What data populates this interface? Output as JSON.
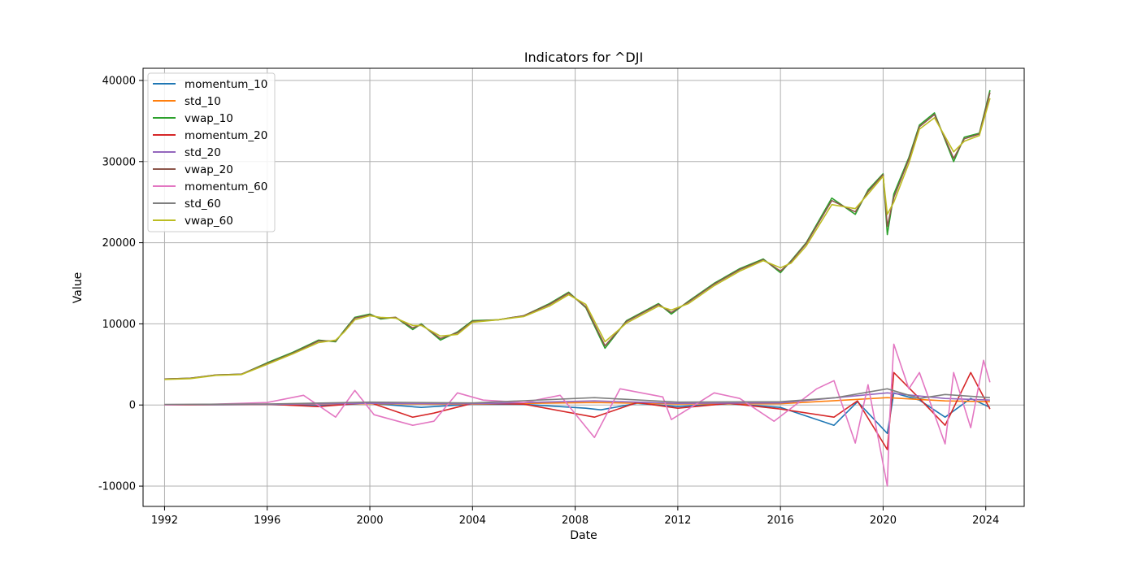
{
  "chart_data": {
    "type": "line",
    "title": "Indicators for ^DJI",
    "xlabel": "Date",
    "ylabel": "Value",
    "xlim": [
      "1991-03-01",
      "2025-07-01"
    ],
    "ylim": [
      -12500,
      41500
    ],
    "x_ticks": [
      "1992",
      "1996",
      "2000",
      "2004",
      "2008",
      "2012",
      "2016",
      "2020",
      "2024"
    ],
    "y_ticks": [
      -10000,
      0,
      10000,
      20000,
      30000,
      40000
    ],
    "grid": true,
    "legend_position": "top-left",
    "series": [
      {
        "name": "momentum_10",
        "color": "#1f77b4",
        "x": [
          "1992-01",
          "1994-01",
          "1996-01",
          "1998-01",
          "2000-01",
          "2002-01",
          "2004-01",
          "2006-01",
          "2008-06",
          "2009-01",
          "2010-06",
          "2012-01",
          "2014-01",
          "2016-01",
          "2018-02",
          "2019-01",
          "2020-03",
          "2020-06",
          "2021-06",
          "2022-06",
          "2023-06",
          "2024-03"
        ],
        "values": [
          0,
          30,
          60,
          -100,
          200,
          -300,
          100,
          80,
          -400,
          -600,
          200,
          -200,
          150,
          -300,
          -2500,
          400,
          -3500,
          1500,
          600,
          -1500,
          800,
          -300
        ]
      },
      {
        "name": "std_10",
        "color": "#ff7f0e",
        "x": [
          "1992-01",
          "1996-01",
          "2000-01",
          "2004-01",
          "2008-10",
          "2012-01",
          "2016-01",
          "2020-03",
          "2022-06",
          "2024-03"
        ],
        "values": [
          30,
          60,
          150,
          100,
          300,
          120,
          150,
          900,
          500,
          400
        ]
      },
      {
        "name": "vwap_10",
        "color": "#2ca02c",
        "x": [
          "1992-01",
          "1993-01",
          "1994-01",
          "1995-01",
          "1996-01",
          "1997-01",
          "1998-01",
          "1998-09",
          "1999-01",
          "1999-06",
          "2000-01",
          "2000-06",
          "2001-01",
          "2001-09",
          "2002-01",
          "2002-10",
          "2003-06",
          "2004-01",
          "2005-01",
          "2006-01",
          "2007-01",
          "2007-10",
          "2008-06",
          "2009-03",
          "2010-01",
          "2011-04",
          "2011-10",
          "2012-06",
          "2013-06",
          "2014-06",
          "2015-05",
          "2016-01",
          "2016-06",
          "2017-01",
          "2018-01",
          "2018-12",
          "2019-06",
          "2020-01",
          "2020-03",
          "2020-06",
          "2021-01",
          "2021-06",
          "2022-01",
          "2022-10",
          "2023-03",
          "2023-10",
          "2024-03"
        ],
        "values": [
          3200,
          3300,
          3700,
          3800,
          5200,
          6500,
          8000,
          7800,
          9200,
          10800,
          11200,
          10600,
          10800,
          9300,
          10000,
          8000,
          9000,
          10400,
          10500,
          11000,
          12500,
          13900,
          12000,
          7000,
          10400,
          12500,
          11200,
          12800,
          15000,
          16800,
          18000,
          16300,
          17800,
          20000,
          25500,
          23500,
          26500,
          28500,
          21000,
          26000,
          30500,
          34500,
          36000,
          30000,
          33000,
          33500,
          38800
        ]
      },
      {
        "name": "momentum_20",
        "color": "#d62728",
        "x": [
          "1992-01",
          "1994-01",
          "1996-01",
          "1998-01",
          "2000-01",
          "2001-09",
          "2002-07",
          "2004-01",
          "2006-01",
          "2008-10",
          "2010-06",
          "2012-01",
          "2014-01",
          "2016-01",
          "2018-02",
          "2019-01",
          "2020-03",
          "2020-06",
          "2021-06",
          "2022-06",
          "2023-06",
          "2024-03"
        ],
        "values": [
          0,
          50,
          100,
          -200,
          300,
          -1500,
          -1000,
          200,
          100,
          -1500,
          300,
          -400,
          200,
          -500,
          -1500,
          500,
          -5500,
          4000,
          800,
          -2500,
          4000,
          -500
        ]
      },
      {
        "name": "std_20",
        "color": "#9467bd",
        "x": [
          "1992-01",
          "1996-01",
          "2000-01",
          "2004-01",
          "2008-10",
          "2012-01",
          "2016-01",
          "2020-03",
          "2022-06",
          "2024-03"
        ],
        "values": [
          40,
          80,
          200,
          150,
          500,
          200,
          250,
          1500,
          800,
          600
        ]
      },
      {
        "name": "vwap_20",
        "color": "#8c564b",
        "x": [
          "1992-01",
          "1993-01",
          "1994-01",
          "1995-01",
          "1996-01",
          "1997-01",
          "1998-01",
          "1998-09",
          "1999-01",
          "1999-06",
          "2000-01",
          "2000-06",
          "2001-01",
          "2001-09",
          "2002-01",
          "2002-10",
          "2003-06",
          "2004-01",
          "2005-01",
          "2006-01",
          "2007-01",
          "2007-10",
          "2008-06",
          "2009-03",
          "2010-01",
          "2011-04",
          "2011-10",
          "2012-06",
          "2013-06",
          "2014-06",
          "2015-05",
          "2016-01",
          "2016-06",
          "2017-01",
          "2018-01",
          "2018-12",
          "2019-06",
          "2020-01",
          "2020-03",
          "2020-06",
          "2021-01",
          "2021-06",
          "2022-01",
          "2022-10",
          "2023-03",
          "2023-10",
          "2024-03"
        ],
        "values": [
          3200,
          3300,
          3700,
          3800,
          5100,
          6400,
          7900,
          7900,
          9100,
          10700,
          11100,
          10700,
          10800,
          9500,
          9900,
          8200,
          8900,
          10300,
          10500,
          11000,
          12400,
          13800,
          12100,
          7300,
          10300,
          12400,
          11400,
          12700,
          14900,
          16700,
          17900,
          16500,
          17700,
          19900,
          25200,
          23800,
          26300,
          28400,
          22000,
          25600,
          30300,
          34300,
          35800,
          30400,
          32800,
          33400,
          38500
        ]
      },
      {
        "name": "momentum_60",
        "color": "#e377c2",
        "x": [
          "1992-01",
          "1994-01",
          "1996-01",
          "1997-06",
          "1998-09",
          "1999-06",
          "2000-03",
          "2001-09",
          "2002-07",
          "2003-06",
          "2004-06",
          "2006-01",
          "2007-06",
          "2008-10",
          "2009-10",
          "2011-06",
          "2011-10",
          "2013-06",
          "2014-06",
          "2015-10",
          "2017-06",
          "2018-02",
          "2018-12",
          "2019-06",
          "2020-03",
          "2020-04",
          "2020-06",
          "2021-01",
          "2021-06",
          "2022-06",
          "2022-10",
          "2023-06",
          "2023-12",
          "2024-03"
        ],
        "values": [
          0,
          100,
          300,
          1200,
          -1500,
          1800,
          -1200,
          -2500,
          -2000,
          1500,
          600,
          300,
          1200,
          -4000,
          2000,
          1000,
          -1800,
          1500,
          800,
          -2000,
          2000,
          3000,
          -4700,
          2500,
          -10000,
          -2000,
          7500,
          2000,
          4000,
          -4800,
          4000,
          -2800,
          5500,
          2800
        ]
      },
      {
        "name": "std_60",
        "color": "#7f7f7f",
        "x": [
          "1992-01",
          "1996-01",
          "2000-01",
          "2004-01",
          "2008-10",
          "2012-01",
          "2016-01",
          "2018-03",
          "2020-03",
          "2021-06",
          "2022-06",
          "2024-03"
        ],
        "values": [
          60,
          120,
          350,
          250,
          900,
          350,
          400,
          900,
          2000,
          800,
          1300,
          900
        ]
      },
      {
        "name": "vwap_60",
        "color": "#bcbd22",
        "x": [
          "1992-01",
          "1993-01",
          "1994-01",
          "1995-01",
          "1996-01",
          "1997-01",
          "1998-01",
          "1998-09",
          "1999-01",
          "1999-06",
          "2000-01",
          "2000-06",
          "2001-01",
          "2001-09",
          "2002-01",
          "2002-10",
          "2003-06",
          "2004-01",
          "2005-01",
          "2006-01",
          "2007-01",
          "2007-10",
          "2008-06",
          "2009-03",
          "2010-01",
          "2011-04",
          "2011-10",
          "2012-06",
          "2013-06",
          "2014-06",
          "2015-05",
          "2016-01",
          "2016-06",
          "2017-01",
          "2018-01",
          "2018-12",
          "2019-06",
          "2020-01",
          "2020-03",
          "2020-06",
          "2021-01",
          "2021-06",
          "2022-01",
          "2022-10",
          "2023-03",
          "2023-10",
          "2024-03"
        ],
        "values": [
          3150,
          3250,
          3650,
          3750,
          5000,
          6300,
          7700,
          8000,
          9000,
          10500,
          11000,
          10800,
          10700,
          9800,
          9800,
          8500,
          8700,
          10200,
          10500,
          10900,
          12200,
          13600,
          12400,
          7800,
          10100,
          12200,
          11700,
          12500,
          14700,
          16500,
          17800,
          16900,
          17500,
          19600,
          24700,
          24200,
          26000,
          28200,
          23500,
          25000,
          29800,
          34000,
          35400,
          31200,
          32500,
          33200,
          37800
        ]
      }
    ]
  }
}
